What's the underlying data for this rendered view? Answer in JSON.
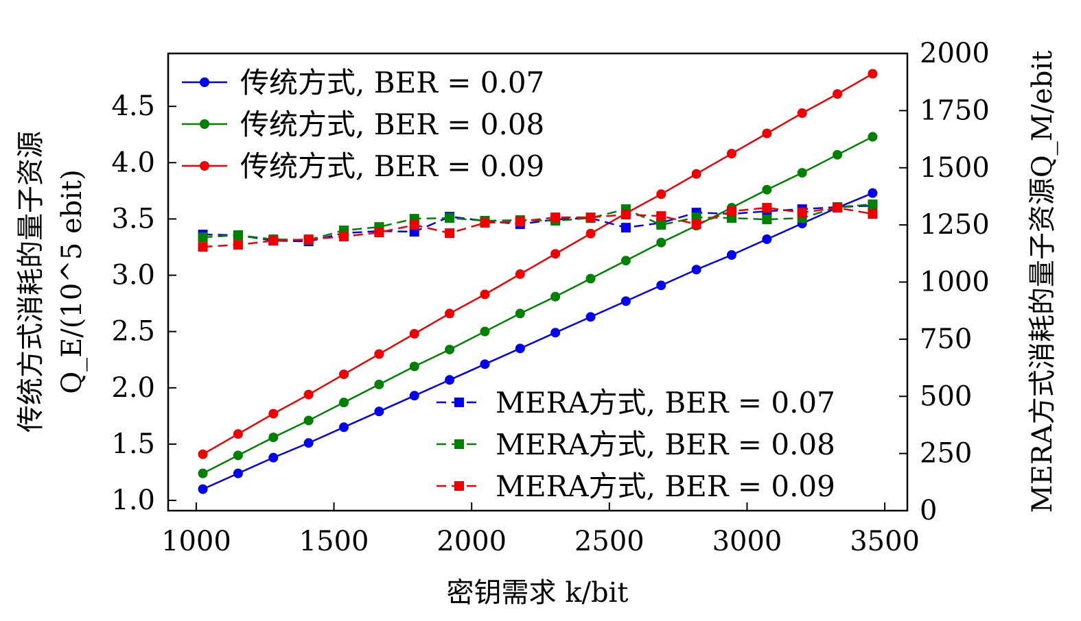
{
  "chart_data": {
    "type": "line",
    "xlabel": "密钥需求 k/bit",
    "ylabel_left_line1": "传统方式消耗的量子资源",
    "ylabel_left_line2": "Q_E/(10^5 ebit)",
    "ylabel_right": "MERA方式消耗的量子资源Q_M/ebit",
    "xlim": [
      898,
      3582
    ],
    "ylim_left": [
      0.909,
      4.97
    ],
    "ylim_right": [
      0,
      2000
    ],
    "x_ticks": [
      "1000",
      "1500",
      "2000",
      "2500",
      "3000",
      "3500"
    ],
    "y_ticks_left": [
      "1.0",
      "1.5",
      "2.0",
      "2.5",
      "3.0",
      "3.5",
      "4.0",
      "4.5"
    ],
    "y_ticks_right": [
      "0",
      "250",
      "500",
      "750",
      "1000",
      "1250",
      "1500",
      "1750",
      "2000"
    ],
    "legend_left_placement": "top-left",
    "legend_right_placement": "bottom-right",
    "x": [
      1024,
      1152,
      1280,
      1408,
      1536,
      1664,
      1792,
      1920,
      2048,
      2176,
      2304,
      2432,
      2560,
      2688,
      2816,
      2944,
      3072,
      3200,
      3328,
      3456
    ],
    "series": [
      {
        "name": "传统方式, BER = 0.07",
        "axis": "left",
        "style": "solid-circle",
        "color": "#0000ee",
        "values": [
          1.1,
          1.24,
          1.38,
          1.51,
          1.65,
          1.79,
          1.93,
          2.07,
          2.21,
          2.35,
          2.49,
          2.63,
          2.77,
          2.91,
          3.05,
          3.18,
          3.32,
          3.46,
          3.6,
          3.73
        ]
      },
      {
        "name": "传统方式, BER = 0.08",
        "axis": "left",
        "style": "solid-circle",
        "color": "#008000",
        "values": [
          1.24,
          1.4,
          1.56,
          1.71,
          1.87,
          2.03,
          2.19,
          2.34,
          2.5,
          2.66,
          2.81,
          2.97,
          3.13,
          3.29,
          3.44,
          3.6,
          3.76,
          3.91,
          4.07,
          4.23
        ]
      },
      {
        "name": "传统方式, BER = 0.09",
        "axis": "left",
        "style": "solid-circle",
        "color": "#ee0000",
        "values": [
          1.41,
          1.59,
          1.77,
          1.94,
          2.12,
          2.3,
          2.48,
          2.66,
          2.83,
          3.01,
          3.19,
          3.37,
          3.55,
          3.72,
          3.9,
          4.08,
          4.26,
          4.44,
          4.61,
          4.79
        ]
      },
      {
        "name": "MERA方式, BER = 0.07",
        "axis": "right",
        "style": "dashed-square",
        "color": "#0000ee",
        "values": [
          1208,
          1205,
          1181,
          1178,
          1214,
          1223,
          1220,
          1286,
          1268,
          1253,
          1274,
          1280,
          1238,
          1259,
          1304,
          1298,
          1310,
          1319,
          1328,
          1334
        ]
      },
      {
        "name": "MERA方式, BER = 0.08",
        "axis": "right",
        "style": "dashed-square",
        "color": "#008000",
        "values": [
          1196,
          1205,
          1187,
          1184,
          1226,
          1241,
          1277,
          1280,
          1268,
          1271,
          1268,
          1280,
          1319,
          1250,
          1283,
          1280,
          1274,
          1280,
          1328,
          1340
        ]
      },
      {
        "name": "MERA方式, BER = 0.09",
        "axis": "right",
        "style": "dashed-square",
        "color": "#ee0000",
        "values": [
          1154,
          1163,
          1181,
          1187,
          1199,
          1217,
          1250,
          1214,
          1259,
          1265,
          1283,
          1283,
          1295,
          1289,
          1253,
          1310,
          1325,
          1304,
          1325,
          1298
        ]
      }
    ]
  }
}
